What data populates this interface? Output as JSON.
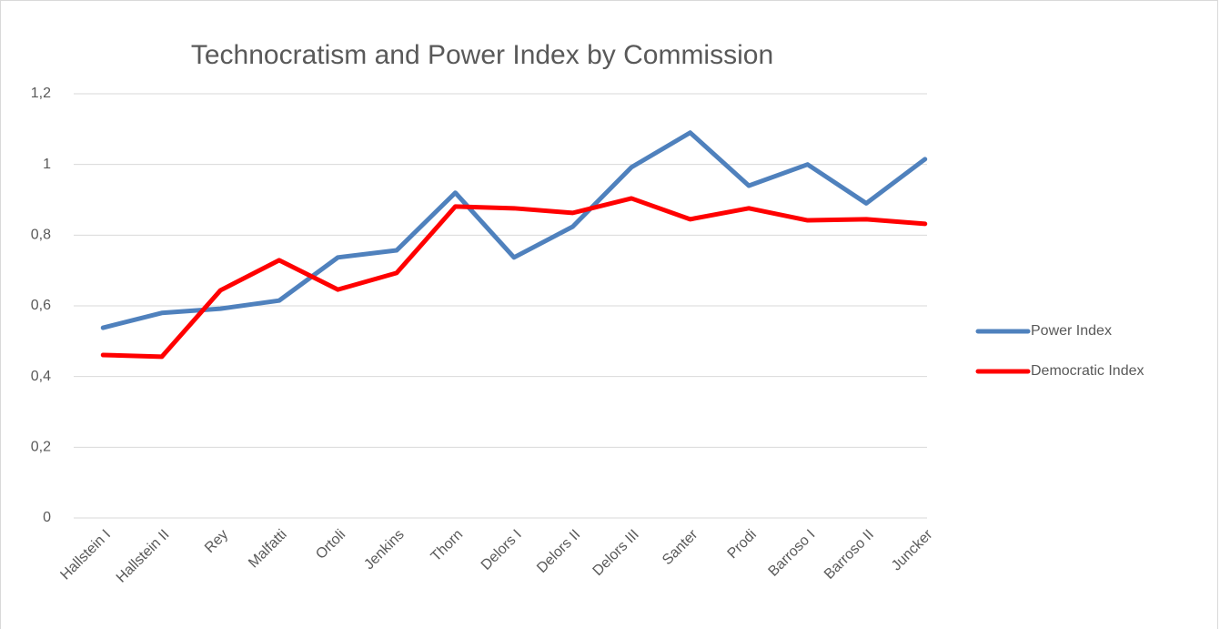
{
  "chart_data": {
    "type": "line",
    "title": "Technocratism and Power Index by Commission",
    "categories": [
      "Hallstein I",
      "Hallstein II",
      "Rey",
      "Malfatti",
      "Ortoli",
      "Jenkins",
      "Thorn",
      "Delors I",
      "Delors II",
      "Delors III",
      "Santer",
      "Prodi",
      "Barroso I",
      "Barroso II",
      "Juncker"
    ],
    "series": [
      {
        "name": "Power Index",
        "color": "#4f81bd",
        "values": [
          0.538,
          0.58,
          0.592,
          0.615,
          0.737,
          0.757,
          0.92,
          0.737,
          0.824,
          0.992,
          1.09,
          0.94,
          1.0,
          0.89,
          1.015
        ]
      },
      {
        "name": "Democratic Index",
        "color": "#ff0000",
        "values": [
          0.461,
          0.456,
          0.644,
          0.729,
          0.646,
          0.693,
          0.881,
          0.876,
          0.863,
          0.904,
          0.845,
          0.876,
          0.842,
          0.845,
          0.832
        ]
      }
    ],
    "ylim": [
      0,
      1.2
    ],
    "yticks": [
      0,
      {
        "value": 0.2,
        "label": "0,2"
      },
      {
        "value": 0.4,
        "label": "0,4"
      },
      {
        "value": 0.6,
        "label": "0,6"
      },
      {
        "value": 0.8,
        "label": "0,8"
      },
      1,
      {
        "value": 1.2,
        "label": "1,2"
      }
    ],
    "grid": true,
    "legend": "right"
  }
}
